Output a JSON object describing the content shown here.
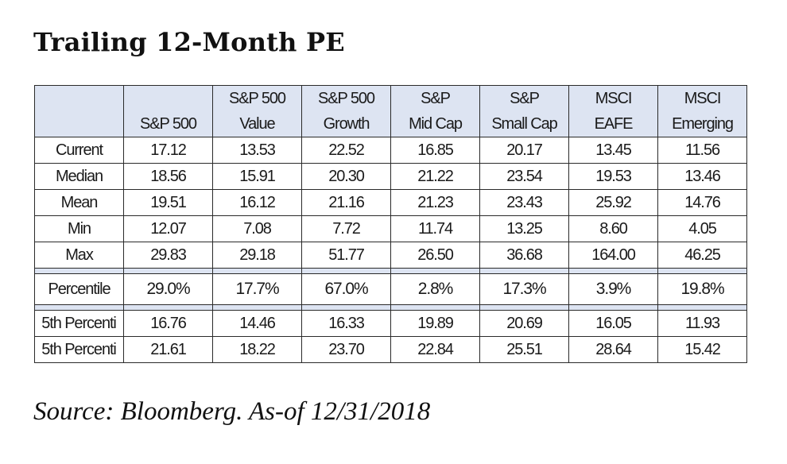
{
  "title": "Trailing 12-Month PE",
  "source": "Source: Bloomberg. As-of 12/31/2018",
  "table": {
    "header_line1": [
      "",
      "",
      "S&P 500",
      "S&P 500",
      "S&P",
      "S&P",
      "MSCI",
      "MSCI"
    ],
    "header_line2": [
      "",
      "S&P 500",
      "Value",
      "Growth",
      "Mid Cap",
      "Small Cap",
      "EAFE",
      "Emerging"
    ],
    "rows": [
      {
        "label": "Current",
        "values": [
          "17.12",
          "13.53",
          "22.52",
          "16.85",
          "20.17",
          "13.45",
          "11.56"
        ]
      },
      {
        "label": "Median",
        "values": [
          "18.56",
          "15.91",
          "20.30",
          "21.22",
          "23.54",
          "19.53",
          "13.46"
        ]
      },
      {
        "label": "Mean",
        "values": [
          "19.51",
          "16.12",
          "21.16",
          "21.23",
          "23.43",
          "25.92",
          "14.76"
        ]
      },
      {
        "label": "Min",
        "values": [
          "12.07",
          "7.08",
          "7.72",
          "11.74",
          "13.25",
          "8.60",
          "4.05"
        ]
      },
      {
        "label": "Max",
        "values": [
          "29.83",
          "29.18",
          "51.77",
          "26.50",
          "36.68",
          "164.00",
          "46.25"
        ]
      }
    ],
    "percentile_row": {
      "label": "Percentile",
      "values": [
        "29.0%",
        "17.7%",
        "67.0%",
        "2.8%",
        "17.3%",
        "3.9%",
        "19.8%"
      ]
    },
    "band_rows": [
      {
        "label": "5th Percenti",
        "values": [
          "16.76",
          "14.46",
          "16.33",
          "19.89",
          "20.69",
          "16.05",
          "11.93"
        ]
      },
      {
        "label": "5th Percenti",
        "values": [
          "21.61",
          "18.22",
          "23.70",
          "22.84",
          "25.51",
          "28.64",
          "15.42"
        ]
      }
    ]
  },
  "colors": {
    "header_bg": "#dde4f2",
    "border": "#2a2a2a"
  }
}
